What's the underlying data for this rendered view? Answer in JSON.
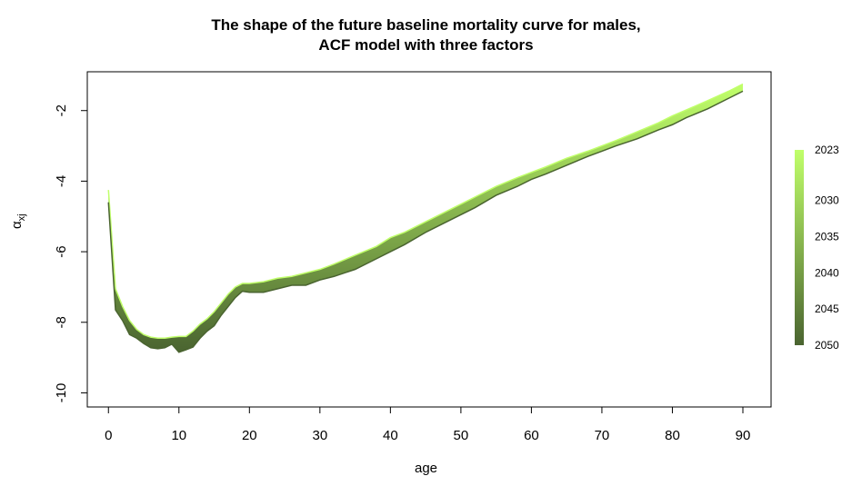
{
  "chart_data": {
    "type": "area",
    "title_line1": "The shape of the future baseline mortality curve for males,",
    "title_line2": "ACF model with three factors",
    "xlabel": "age",
    "ylabel_symbol": "α",
    "ylabel_subscript": "xj",
    "xlim": [
      -3,
      94
    ],
    "ylim": [
      -10.4,
      -0.9
    ],
    "x_ticks": [
      0,
      10,
      20,
      30,
      40,
      50,
      60,
      70,
      80,
      90
    ],
    "y_ticks": [
      -10,
      -8,
      -6,
      -4,
      -2
    ],
    "grid": false,
    "legend_position": "right",
    "legend": {
      "type": "color-bar",
      "labels": [
        "2023",
        "2030",
        "2035",
        "2040",
        "2045",
        "2050"
      ],
      "range": [
        2023,
        2050
      ]
    },
    "colors": {
      "start": "#c0ff6a",
      "end": "#4a6430"
    },
    "series": [
      {
        "x": [
          0,
          1,
          2,
          3,
          4,
          5,
          6,
          7,
          8,
          9,
          10,
          11,
          12,
          13,
          14,
          15,
          16,
          17,
          18,
          19,
          20,
          22,
          24,
          26,
          28,
          30,
          32,
          35,
          38,
          40,
          42,
          45,
          48,
          50,
          52,
          55,
          58,
          60,
          62,
          65,
          68,
          70,
          72,
          75,
          78,
          80,
          82,
          85,
          88,
          90
        ],
        "upper": [
          -4.25,
          -7.05,
          -7.55,
          -7.95,
          -8.2,
          -8.35,
          -8.42,
          -8.45,
          -8.45,
          -8.42,
          -8.4,
          -8.4,
          -8.25,
          -8.05,
          -7.9,
          -7.7,
          -7.45,
          -7.2,
          -7.0,
          -6.9,
          -6.9,
          -6.85,
          -6.75,
          -6.7,
          -6.6,
          -6.5,
          -6.35,
          -6.1,
          -5.85,
          -5.6,
          -5.45,
          -5.15,
          -4.85,
          -4.65,
          -4.45,
          -4.15,
          -3.9,
          -3.75,
          -3.6,
          -3.35,
          -3.15,
          -3.0,
          -2.85,
          -2.6,
          -2.35,
          -2.15,
          -1.98,
          -1.72,
          -1.45,
          -1.25
        ],
        "lower": [
          -4.6,
          -7.65,
          -7.95,
          -8.35,
          -8.45,
          -8.6,
          -8.72,
          -8.75,
          -8.72,
          -8.62,
          -8.85,
          -8.78,
          -8.7,
          -8.45,
          -8.25,
          -8.1,
          -7.8,
          -7.55,
          -7.3,
          -7.12,
          -7.15,
          -7.15,
          -7.05,
          -6.95,
          -6.95,
          -6.8,
          -6.7,
          -6.5,
          -6.2,
          -6.0,
          -5.8,
          -5.45,
          -5.15,
          -4.95,
          -4.75,
          -4.4,
          -4.15,
          -3.95,
          -3.8,
          -3.55,
          -3.3,
          -3.15,
          -3.0,
          -2.8,
          -2.55,
          -2.4,
          -2.2,
          -1.95,
          -1.65,
          -1.45
        ]
      }
    ]
  }
}
